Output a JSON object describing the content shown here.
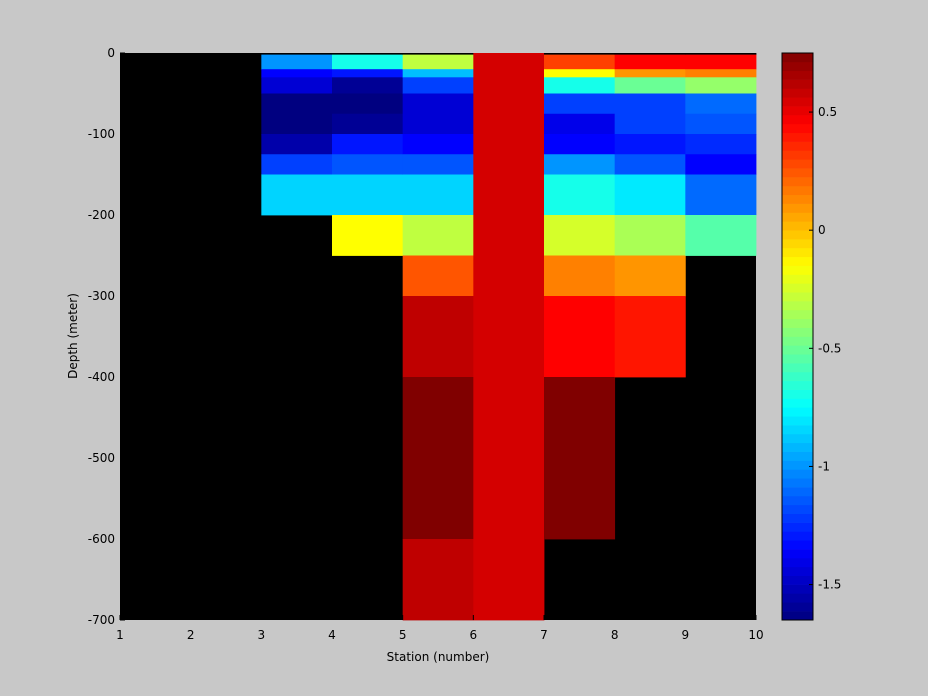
{
  "chart_data": {
    "type": "heatmap",
    "title": "",
    "xlabel": "Station (number)",
    "ylabel": "Depth (meter)",
    "xlim": [
      1,
      10
    ],
    "ylim": [
      -700,
      0
    ],
    "xticks": [
      1,
      2,
      3,
      4,
      5,
      6,
      7,
      8,
      9,
      10
    ],
    "yticks": [
      0,
      -100,
      -200,
      -300,
      -400,
      -500,
      -600,
      -700
    ],
    "colorbar": {
      "range": [
        -1.65,
        0.75
      ],
      "ticks": [
        0.5,
        0,
        -0.5,
        -1,
        -1.5
      ],
      "colormap": "jet"
    },
    "background_color": "#000000",
    "panel_background": "#c8c8c8",
    "x_edges": [
      1,
      2,
      3,
      4,
      5,
      6,
      7,
      8,
      9,
      10
    ],
    "cells": [
      {
        "x0": 3,
        "x1": 4,
        "d0": 0,
        "d1": -2,
        "value": null
      },
      {
        "x0": 3,
        "x1": 4,
        "d0": -2,
        "d1": -20,
        "value": -1.0
      },
      {
        "x0": 3,
        "x1": 4,
        "d0": -20,
        "d1": -30,
        "value": -1.35
      },
      {
        "x0": 3,
        "x1": 4,
        "d0": -30,
        "d1": -50,
        "value": -1.45
      },
      {
        "x0": 3,
        "x1": 4,
        "d0": -50,
        "d1": -100,
        "value": -1.65
      },
      {
        "x0": 3,
        "x1": 4,
        "d0": -100,
        "d1": -125,
        "value": -1.55
      },
      {
        "x0": 3,
        "x1": 4,
        "d0": -125,
        "d1": -150,
        "value": -1.2
      },
      {
        "x0": 3,
        "x1": 4,
        "d0": -150,
        "d1": -200,
        "value": -0.85
      },
      {
        "x0": 4,
        "x1": 5,
        "d0": 0,
        "d1": -2,
        "value": null
      },
      {
        "x0": 4,
        "x1": 5,
        "d0": -2,
        "d1": -20,
        "value": -0.7
      },
      {
        "x0": 4,
        "x1": 5,
        "d0": -20,
        "d1": -30,
        "value": -1.3
      },
      {
        "x0": 4,
        "x1": 5,
        "d0": -30,
        "d1": -50,
        "value": -1.6
      },
      {
        "x0": 4,
        "x1": 5,
        "d0": -50,
        "d1": -75,
        "value": -1.65
      },
      {
        "x0": 4,
        "x1": 5,
        "d0": -75,
        "d1": -100,
        "value": -1.6
      },
      {
        "x0": 4,
        "x1": 5,
        "d0": -100,
        "d1": -125,
        "value": -1.3
      },
      {
        "x0": 4,
        "x1": 5,
        "d0": -125,
        "d1": -150,
        "value": -1.15
      },
      {
        "x0": 4,
        "x1": 5,
        "d0": -150,
        "d1": -200,
        "value": -0.85
      },
      {
        "x0": 4,
        "x1": 5,
        "d0": -200,
        "d1": -250,
        "value": -0.15
      },
      {
        "x0": 5,
        "x1": 6,
        "d0": 0,
        "d1": -2,
        "value": null
      },
      {
        "x0": 5,
        "x1": 6,
        "d0": -2,
        "d1": -20,
        "value": -0.3
      },
      {
        "x0": 5,
        "x1": 6,
        "d0": -20,
        "d1": -30,
        "value": -0.9
      },
      {
        "x0": 5,
        "x1": 6,
        "d0": -30,
        "d1": -50,
        "value": -1.2
      },
      {
        "x0": 5,
        "x1": 6,
        "d0": -50,
        "d1": -100,
        "value": -1.45
      },
      {
        "x0": 5,
        "x1": 6,
        "d0": -100,
        "d1": -125,
        "value": -1.35
      },
      {
        "x0": 5,
        "x1": 6,
        "d0": -125,
        "d1": -150,
        "value": -1.15
      },
      {
        "x0": 5,
        "x1": 6,
        "d0": -150,
        "d1": -200,
        "value": -0.85
      },
      {
        "x0": 5,
        "x1": 6,
        "d0": -200,
        "d1": -250,
        "value": -0.3
      },
      {
        "x0": 5,
        "x1": 6,
        "d0": -250,
        "d1": -300,
        "value": 0.25
      },
      {
        "x0": 5,
        "x1": 6,
        "d0": -300,
        "d1": -400,
        "value": 0.6
      },
      {
        "x0": 5,
        "x1": 6,
        "d0": -400,
        "d1": -600,
        "value": 0.75
      },
      {
        "x0": 5,
        "x1": 6,
        "d0": -600,
        "d1": -700,
        "value": 0.6
      },
      {
        "x0": 6,
        "x1": 7,
        "d0": 0,
        "d1": -700,
        "value": 0.55
      },
      {
        "x0": 7,
        "x1": 8,
        "d0": 0,
        "d1": -2,
        "value": null
      },
      {
        "x0": 7,
        "x1": 8,
        "d0": -2,
        "d1": -20,
        "value": 0.3
      },
      {
        "x0": 7,
        "x1": 8,
        "d0": -20,
        "d1": -30,
        "value": -0.15
      },
      {
        "x0": 7,
        "x1": 8,
        "d0": -30,
        "d1": -50,
        "value": -0.7
      },
      {
        "x0": 7,
        "x1": 8,
        "d0": -50,
        "d1": -75,
        "value": -1.2
      },
      {
        "x0": 7,
        "x1": 8,
        "d0": -75,
        "d1": -100,
        "value": -1.4
      },
      {
        "x0": 7,
        "x1": 8,
        "d0": -100,
        "d1": -125,
        "value": -1.35
      },
      {
        "x0": 7,
        "x1": 8,
        "d0": -125,
        "d1": -150,
        "value": -1.0
      },
      {
        "x0": 7,
        "x1": 8,
        "d0": -150,
        "d1": -200,
        "value": -0.7
      },
      {
        "x0": 7,
        "x1": 8,
        "d0": -200,
        "d1": -250,
        "value": -0.25
      },
      {
        "x0": 7,
        "x1": 8,
        "d0": -250,
        "d1": -300,
        "value": 0.15
      },
      {
        "x0": 7,
        "x1": 8,
        "d0": -300,
        "d1": -400,
        "value": 0.45
      },
      {
        "x0": 7,
        "x1": 8,
        "d0": -400,
        "d1": -600,
        "value": 0.75
      },
      {
        "x0": 8,
        "x1": 9,
        "d0": 0,
        "d1": -2,
        "value": null
      },
      {
        "x0": 8,
        "x1": 9,
        "d0": -2,
        "d1": -20,
        "value": 0.45
      },
      {
        "x0": 8,
        "x1": 9,
        "d0": -20,
        "d1": -30,
        "value": 0.1
      },
      {
        "x0": 8,
        "x1": 9,
        "d0": -30,
        "d1": -50,
        "value": -0.5
      },
      {
        "x0": 8,
        "x1": 9,
        "d0": -50,
        "d1": -100,
        "value": -1.2
      },
      {
        "x0": 8,
        "x1": 9,
        "d0": -100,
        "d1": -125,
        "value": -1.3
      },
      {
        "x0": 8,
        "x1": 9,
        "d0": -125,
        "d1": -150,
        "value": -1.15
      },
      {
        "x0": 8,
        "x1": 9,
        "d0": -150,
        "d1": -200,
        "value": -0.8
      },
      {
        "x0": 8,
        "x1": 9,
        "d0": -200,
        "d1": -250,
        "value": -0.35
      },
      {
        "x0": 8,
        "x1": 9,
        "d0": -250,
        "d1": -300,
        "value": 0.1
      },
      {
        "x0": 8,
        "x1": 9,
        "d0": -300,
        "d1": -400,
        "value": 0.4
      },
      {
        "x0": 9,
        "x1": 10,
        "d0": 0,
        "d1": -2,
        "value": null
      },
      {
        "x0": 9,
        "x1": 10,
        "d0": -2,
        "d1": -20,
        "value": 0.45
      },
      {
        "x0": 9,
        "x1": 10,
        "d0": -20,
        "d1": -30,
        "value": 0.15
      },
      {
        "x0": 9,
        "x1": 10,
        "d0": -30,
        "d1": -50,
        "value": -0.4
      },
      {
        "x0": 9,
        "x1": 10,
        "d0": -50,
        "d1": -75,
        "value": -1.1
      },
      {
        "x0": 9,
        "x1": 10,
        "d0": -75,
        "d1": -100,
        "value": -1.15
      },
      {
        "x0": 9,
        "x1": 10,
        "d0": -100,
        "d1": -125,
        "value": -1.25
      },
      {
        "x0": 9,
        "x1": 10,
        "d0": -125,
        "d1": -150,
        "value": -1.35
      },
      {
        "x0": 9,
        "x1": 10,
        "d0": -150,
        "d1": -200,
        "value": -1.1
      },
      {
        "x0": 9,
        "x1": 10,
        "d0": -200,
        "d1": -250,
        "value": -0.55
      }
    ]
  }
}
